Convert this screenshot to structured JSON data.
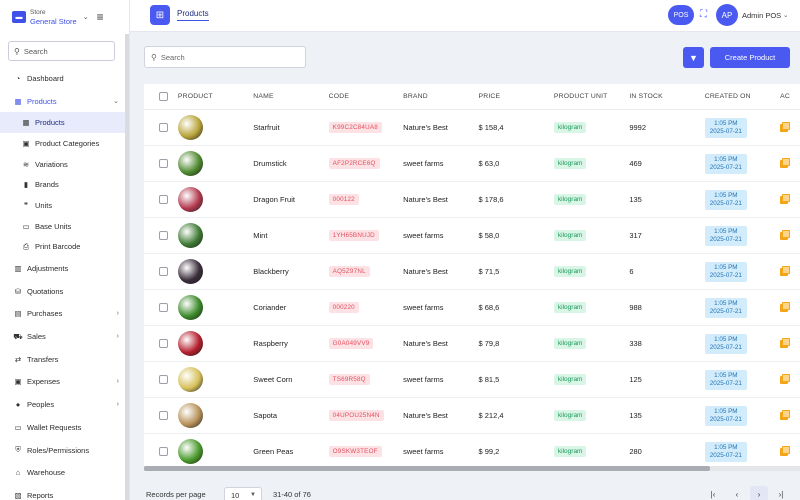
{
  "store": {
    "small_label": "Store",
    "name": "General Store"
  },
  "sidebar": {
    "search_placeholder": "Search",
    "items": [
      {
        "label": "Dashboard",
        "icon": "dashboard-icon",
        "glyph": "◔"
      },
      {
        "label": "Products",
        "icon": "products-icon",
        "glyph": "▦",
        "active_parent": true,
        "chev": "⌄"
      },
      {
        "label": "Products",
        "icon": "products-sub-icon",
        "glyph": "▦",
        "sub": true,
        "active": true
      },
      {
        "label": "Product Categories",
        "icon": "category-icon",
        "glyph": "▣",
        "sub": true
      },
      {
        "label": "Variations",
        "icon": "variations-icon",
        "glyph": "≋",
        "sub": true
      },
      {
        "label": "Brands",
        "icon": "bookmark-icon",
        "glyph": "▮",
        "sub": true
      },
      {
        "label": "Units",
        "icon": "quote-icon",
        "glyph": "❞",
        "sub": true
      },
      {
        "label": "Base Units",
        "icon": "base-units-icon",
        "glyph": "▭",
        "sub": true
      },
      {
        "label": "Print Barcode",
        "icon": "printer-icon",
        "glyph": "⎙",
        "sub": true
      },
      {
        "label": "Adjustments",
        "icon": "adjustments-icon",
        "glyph": "▥"
      },
      {
        "label": "Quotations",
        "icon": "basket-icon",
        "glyph": "⛁"
      },
      {
        "label": "Purchases",
        "icon": "purchases-icon",
        "glyph": "▤",
        "chev": "›"
      },
      {
        "label": "Sales",
        "icon": "cart-icon",
        "glyph": "⛟",
        "chev": "›"
      },
      {
        "label": "Transfers",
        "icon": "transfers-icon",
        "glyph": "⇄"
      },
      {
        "label": "Expenses",
        "icon": "wallet-icon",
        "glyph": "▣",
        "chev": "›"
      },
      {
        "label": "Peoples",
        "icon": "user-icon",
        "glyph": "●",
        "chev": "›"
      },
      {
        "label": "Wallet Requests",
        "icon": "wallet-requests-icon",
        "glyph": "▭"
      },
      {
        "label": "Roles/Permissions",
        "icon": "shield-icon",
        "glyph": "⛨"
      },
      {
        "label": "Warehouse",
        "icon": "warehouse-icon",
        "glyph": "⌂"
      },
      {
        "label": "Reports",
        "icon": "reports-icon",
        "glyph": "▧"
      }
    ]
  },
  "topbar": {
    "tab_label": "Products",
    "pos_label": "POS",
    "avatar_initials": "AP",
    "user_name": "Admin POS"
  },
  "toolbar": {
    "search_placeholder": "Search",
    "create_label": "Create Product"
  },
  "table": {
    "headers": [
      "PRODUCT",
      "NAME",
      "CODE",
      "BRAND",
      "PRICE",
      "PRODUCT UNIT",
      "IN STOCK",
      "CREATED ON",
      "AC"
    ],
    "rows": [
      {
        "name": "Starfruit",
        "code": "K99C2C84UA8",
        "brand": "Nature's Best",
        "price": "$ 158,4",
        "unit": "kilogram",
        "stock": "9992",
        "time": "1:05 PM",
        "date": "2025-07-21",
        "color": "#b8a43a"
      },
      {
        "name": "Drumstick",
        "code": "AF2P2RCE6Q",
        "brand": "sweet farms",
        "price": "$ 63,0",
        "unit": "kilogram",
        "stock": "469",
        "time": "1:05 PM",
        "date": "2025-07-21",
        "color": "#4e8a2e"
      },
      {
        "name": "Dragon Fruit",
        "code": "000122",
        "brand": "Nature's Best",
        "price": "$ 178,6",
        "unit": "kilogram",
        "stock": "135",
        "time": "1:05 PM",
        "date": "2025-07-21",
        "color": "#b23a4e"
      },
      {
        "name": "Mint",
        "code": "1YH65BNUJD",
        "brand": "sweet farms",
        "price": "$ 58,0",
        "unit": "kilogram",
        "stock": "317",
        "time": "1:05 PM",
        "date": "2025-07-21",
        "color": "#3f7a34"
      },
      {
        "name": "Blackberry",
        "code": "AQ5Z97NL",
        "brand": "Nature's Best",
        "price": "$ 71,5",
        "unit": "kilogram",
        "stock": "6",
        "time": "1:05 PM",
        "date": "2025-07-21",
        "color": "#3a2e3a"
      },
      {
        "name": "Coriander",
        "code": "000220",
        "brand": "sweet farms",
        "price": "$ 68,6",
        "unit": "kilogram",
        "stock": "988",
        "time": "1:05 PM",
        "date": "2025-07-21",
        "color": "#3c8a2a"
      },
      {
        "name": "Raspberry",
        "code": "G0A049VV9",
        "brand": "Nature's Best",
        "price": "$ 79,8",
        "unit": "kilogram",
        "stock": "338",
        "time": "1:05 PM",
        "date": "2025-07-21",
        "color": "#b5202e"
      },
      {
        "name": "Sweet Corn",
        "code": "TS69R58Q",
        "brand": "sweet farms",
        "price": "$ 81,5",
        "unit": "kilogram",
        "stock": "125",
        "time": "1:05 PM",
        "date": "2025-07-21",
        "color": "#d6c05a"
      },
      {
        "name": "Sapota",
        "code": "04UPOU25N4N",
        "brand": "Nature's Best",
        "price": "$ 212,4",
        "unit": "kilogram",
        "stock": "135",
        "time": "1:05 PM",
        "date": "2025-07-21",
        "color": "#b8925a"
      },
      {
        "name": "Green Peas",
        "code": "O9SKW3TEOF",
        "brand": "sweet farms",
        "price": "$ 99,2",
        "unit": "kilogram",
        "stock": "280",
        "time": "1:05 PM",
        "date": "2025-07-21",
        "color": "#4a9a2c"
      }
    ]
  },
  "footer": {
    "records_label": "Records per page",
    "per_page": "10",
    "range": "31-40 of 76"
  },
  "colors": {
    "accent": "#4a5af0",
    "code_badge": "#fde2e5",
    "unit_badge": "#d8f5e6",
    "date_badge": "#d3ecfb"
  }
}
